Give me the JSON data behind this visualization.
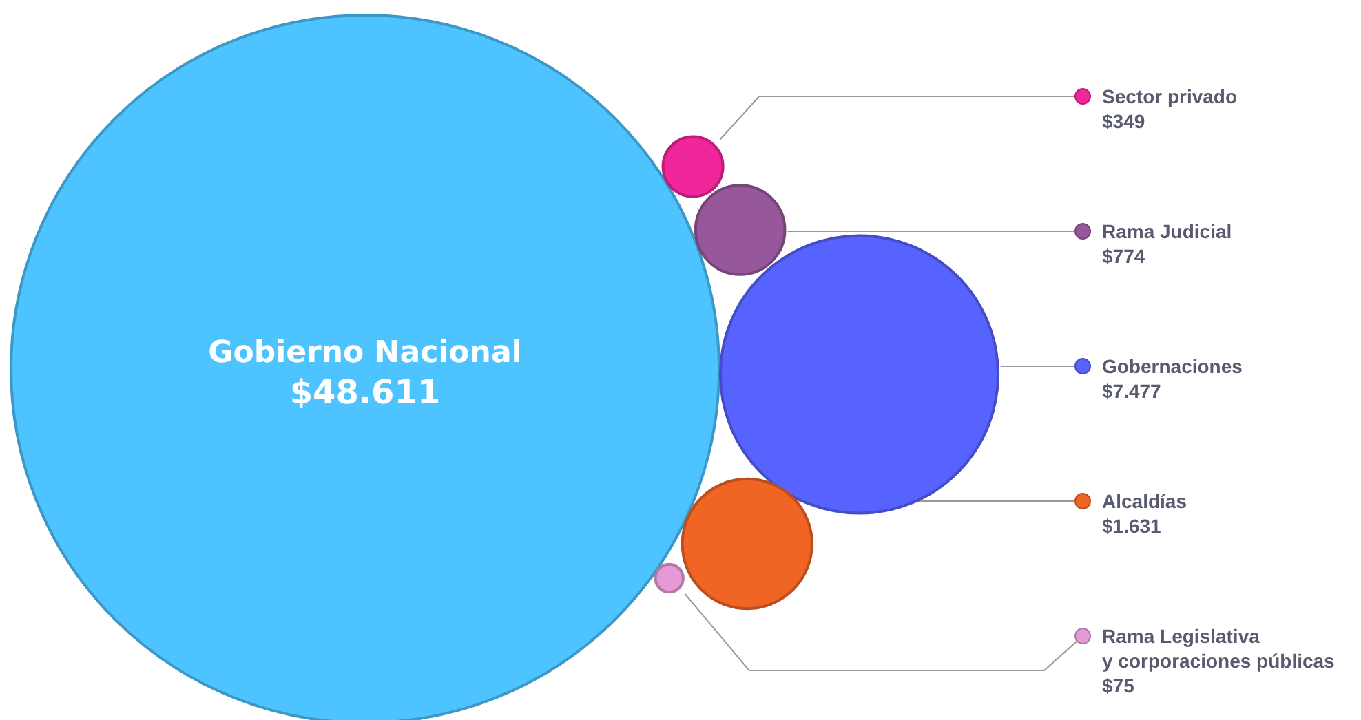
{
  "chart_data": {
    "type": "other",
    "categories": [
      "Gobierno Nacional",
      "Sector privado",
      "Rama Judicial",
      "Gobernaciones",
      "Alcaldías",
      "Rama Legislativa\ny corporaciones públicas"
    ],
    "values": [
      48611,
      349,
      774,
      7477,
      1631,
      75
    ],
    "value_labels": [
      "$48.611",
      "$349",
      "$774",
      "$7.477",
      "$1.631",
      "$75"
    ],
    "colors": [
      "#4dc3ff",
      "#f0279a",
      "#96589a",
      "#5763ff",
      "#f06424",
      "#e59ad6"
    ]
  }
}
